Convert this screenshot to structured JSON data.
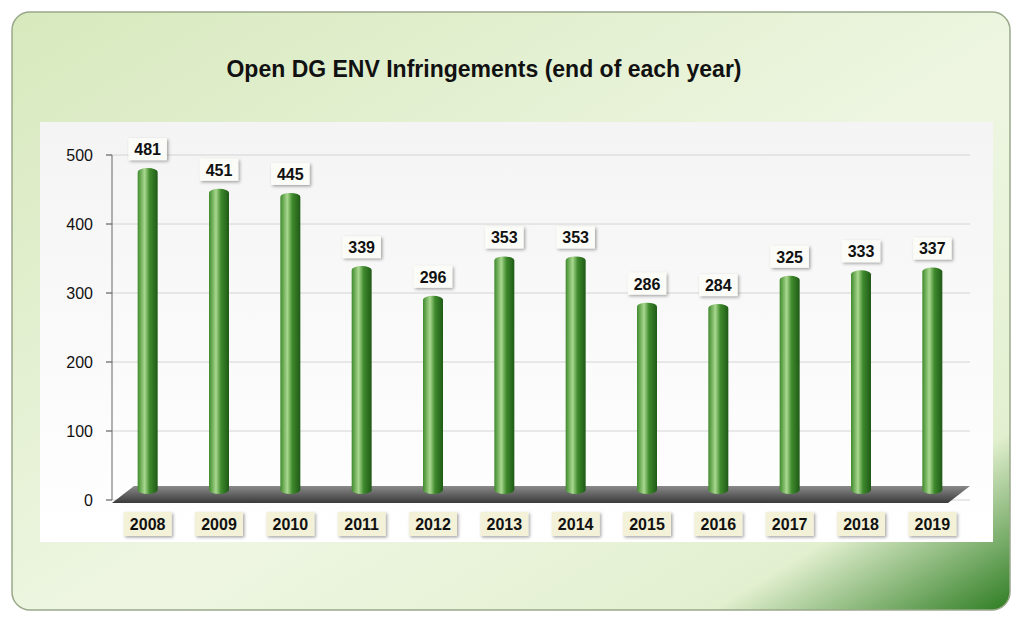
{
  "chart_data": {
    "type": "bar",
    "title": "Open DG ENV Infringements (end of each year)",
    "categories": [
      "2008",
      "2009",
      "2010",
      "2011",
      "2012",
      "2013",
      "2014",
      "2015",
      "2016",
      "2017",
      "2018",
      "2019"
    ],
    "values": [
      481,
      451,
      445,
      339,
      296,
      353,
      353,
      286,
      284,
      325,
      333,
      337
    ],
    "color": "#3f8a2c",
    "ylim": [
      0,
      500
    ],
    "yticks": [
      0,
      100,
      200,
      300,
      400,
      500
    ],
    "grid": true,
    "data_labels": true
  }
}
